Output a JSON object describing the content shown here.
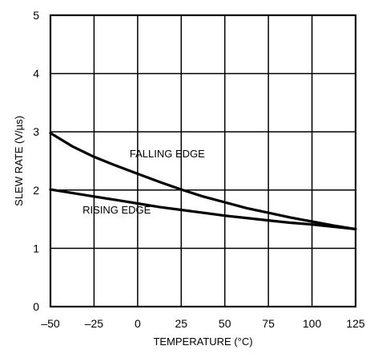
{
  "chart_data": {
    "type": "line",
    "title": "",
    "xlabel": "TEMPERATURE (°C)",
    "ylabel": "SLEW RATE (V/µs)",
    "xlim": [
      -50,
      125
    ],
    "ylim": [
      0,
      5
    ],
    "grid": true,
    "x_ticks": [
      -50,
      -25,
      0,
      25,
      50,
      75,
      100,
      125
    ],
    "x_tick_labels": [
      "–50",
      "–25",
      "0",
      "25",
      "50",
      "75",
      "100",
      "125"
    ],
    "y_ticks": [
      0,
      1,
      2,
      3,
      4,
      5
    ],
    "y_tick_labels": [
      "0",
      "1",
      "2",
      "3",
      "4",
      "5"
    ],
    "series": [
      {
        "name": "FALLING EDGE",
        "x": [
          -50,
          -37.5,
          -25,
          -12.5,
          0,
          12.5,
          25,
          37.5,
          50,
          62.5,
          75,
          87.5,
          100,
          112.5,
          125
        ],
        "y": [
          2.98,
          2.75,
          2.57,
          2.42,
          2.28,
          2.14,
          2.01,
          1.89,
          1.79,
          1.69,
          1.61,
          1.53,
          1.46,
          1.39,
          1.33
        ]
      },
      {
        "name": "RISING EDGE",
        "x": [
          -50,
          -37.5,
          -25,
          -12.5,
          0,
          12.5,
          25,
          37.5,
          50,
          62.5,
          75,
          87.5,
          100,
          112.5,
          125
        ],
        "y": [
          2.01,
          1.95,
          1.89,
          1.83,
          1.77,
          1.71,
          1.66,
          1.61,
          1.56,
          1.52,
          1.48,
          1.44,
          1.41,
          1.37,
          1.33
        ]
      }
    ],
    "annotations": [
      {
        "text": "FALLING EDGE",
        "series": "FALLING EDGE",
        "x": 17,
        "y": 2.56
      },
      {
        "text": "RISING EDGE",
        "series": "RISING EDGE",
        "x": -12,
        "y": 1.6
      }
    ]
  }
}
